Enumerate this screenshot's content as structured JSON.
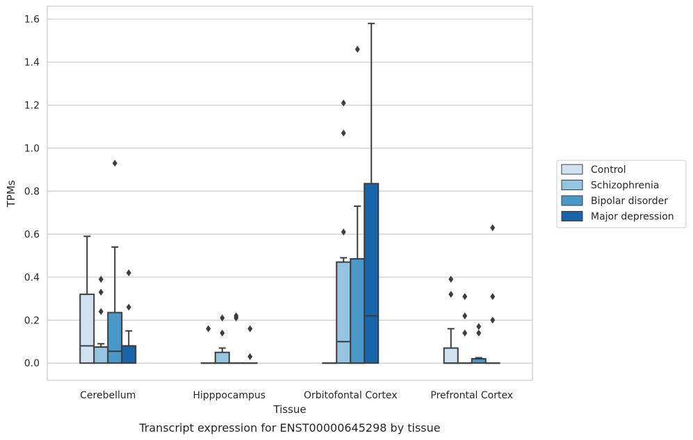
{
  "caption": "Transcript expression for ENST00000645298 by tissue",
  "colors": {
    "Control": "#d0e1f2",
    "Schizophrenia": "#94c4df",
    "Bipolar disorder": "#4a98c9",
    "Major depression": "#1764ab",
    "box_edge": "#3d3d3d",
    "grid": "#cccccc"
  },
  "chart_data": {
    "type": "box",
    "title": "",
    "xlabel": "Tissue",
    "ylabel": "TPMs",
    "ylim": [
      -0.08,
      1.66
    ],
    "yticks": [
      0.0,
      0.2,
      0.4,
      0.6,
      0.8,
      1.0,
      1.2,
      1.4,
      1.6
    ],
    "ytick_labels": [
      "0.0",
      "0.2",
      "0.4",
      "0.6",
      "0.8",
      "1.0",
      "1.2",
      "1.4",
      "1.6"
    ],
    "grid": true,
    "legend_position": "right",
    "categories": [
      "Cerebellum",
      "Hipppocampus",
      "Orbitofontal Cortex",
      "Prefrontal Cortex"
    ],
    "series": [
      {
        "name": "Control",
        "boxes": [
          {
            "whislo": 0.0,
            "q1": 0.0,
            "med": 0.08,
            "q3": 0.32,
            "whishi": 0.59,
            "fliers": []
          },
          {
            "whislo": 0.0,
            "q1": 0.0,
            "med": 0.0,
            "q3": 0.0,
            "whishi": 0.0,
            "fliers": [
              0.16
            ]
          },
          {
            "whislo": 0.0,
            "q1": 0.0,
            "med": 0.0,
            "q3": 0.0,
            "whishi": 0.0,
            "fliers": []
          },
          {
            "whislo": 0.0,
            "q1": 0.0,
            "med": 0.0,
            "q3": 0.07,
            "whishi": 0.16,
            "fliers": [
              0.32,
              0.39
            ]
          }
        ]
      },
      {
        "name": "Schizophrenia",
        "boxes": [
          {
            "whislo": 0.0,
            "q1": 0.0,
            "med": 0.075,
            "q3": 0.075,
            "whishi": 0.09,
            "fliers": [
              0.24,
              0.33,
              0.39
            ]
          },
          {
            "whislo": 0.0,
            "q1": 0.0,
            "med": 0.0,
            "q3": 0.05,
            "whishi": 0.07,
            "fliers": [
              0.14,
              0.21
            ]
          },
          {
            "whislo": 0.0,
            "q1": 0.0,
            "med": 0.1,
            "q3": 0.47,
            "whishi": 0.49,
            "fliers": [
              0.61,
              1.07,
              1.21
            ]
          },
          {
            "whislo": 0.0,
            "q1": 0.0,
            "med": 0.0,
            "q3": 0.0,
            "whishi": 0.0,
            "fliers": [
              0.14,
              0.22,
              0.31
            ]
          }
        ]
      },
      {
        "name": "Bipolar disorder",
        "boxes": [
          {
            "whislo": 0.0,
            "q1": 0.0,
            "med": 0.055,
            "q3": 0.235,
            "whishi": 0.54,
            "fliers": [
              0.93
            ]
          },
          {
            "whislo": 0.0,
            "q1": 0.0,
            "med": 0.0,
            "q3": 0.0,
            "whishi": 0.0,
            "fliers": [
              0.21,
              0.22
            ]
          },
          {
            "whislo": 0.0,
            "q1": 0.0,
            "med": 0.0,
            "q3": 0.485,
            "whishi": 0.73,
            "fliers": [
              1.46
            ]
          },
          {
            "whislo": 0.0,
            "q1": 0.0,
            "med": 0.02,
            "q3": 0.02,
            "whishi": 0.025,
            "fliers": [
              0.14,
              0.17
            ]
          }
        ]
      },
      {
        "name": "Major depression",
        "boxes": [
          {
            "whislo": 0.0,
            "q1": 0.0,
            "med": 0.08,
            "q3": 0.08,
            "whishi": 0.15,
            "fliers": [
              0.26,
              0.42
            ]
          },
          {
            "whislo": 0.0,
            "q1": 0.0,
            "med": 0.0,
            "q3": 0.0,
            "whishi": 0.0,
            "fliers": [
              0.03,
              0.16
            ]
          },
          {
            "whislo": 0.0,
            "q1": 0.0,
            "med": 0.22,
            "q3": 0.835,
            "whishi": 1.58,
            "fliers": []
          },
          {
            "whislo": 0.0,
            "q1": 0.0,
            "med": 0.0,
            "q3": 0.0,
            "whishi": 0.0,
            "fliers": [
              0.2,
              0.31,
              0.63
            ]
          }
        ]
      }
    ]
  }
}
